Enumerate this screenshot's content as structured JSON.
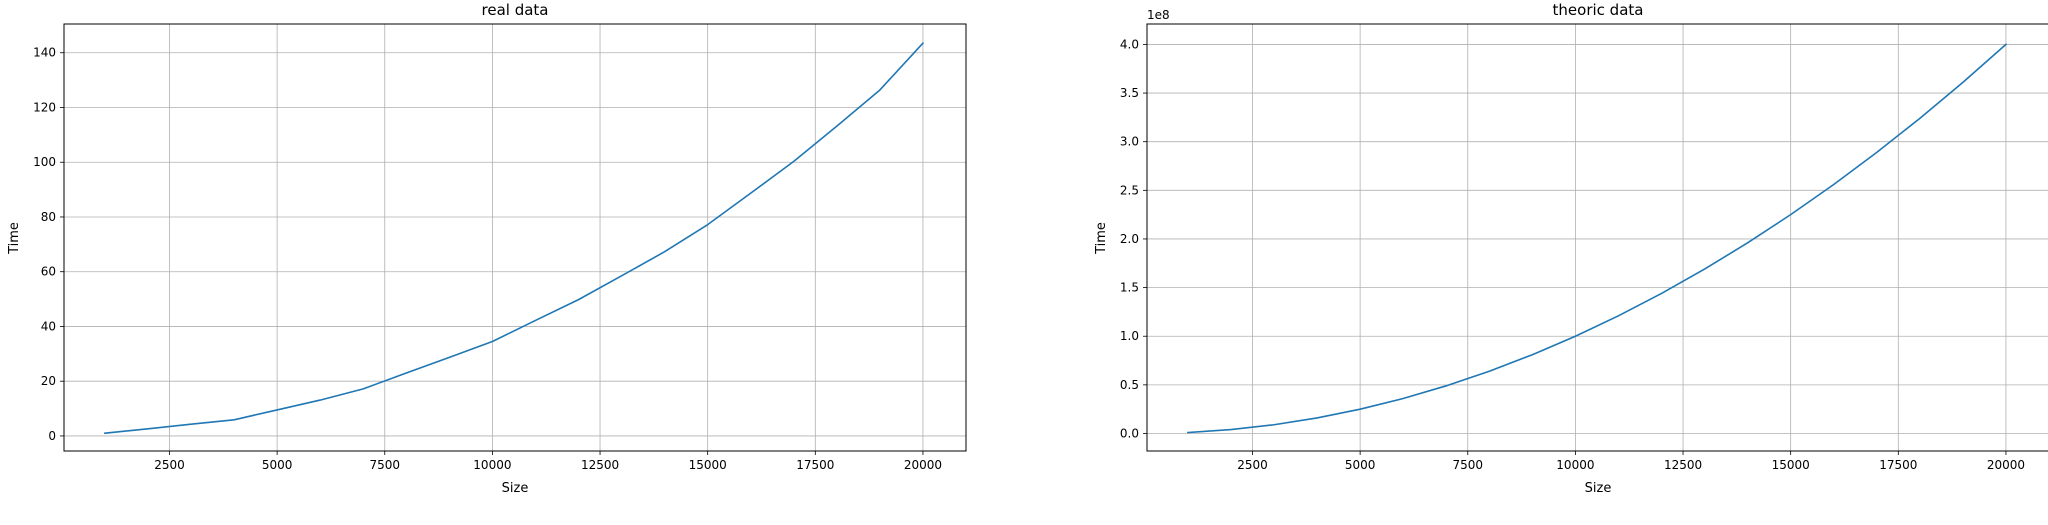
{
  "colors": {
    "series": "#1f77b4",
    "grid": "#b0b0b0",
    "axes": "#000000"
  },
  "chart_data": [
    {
      "type": "line",
      "title": "real data",
      "xlabel": "Size",
      "ylabel": "Time",
      "xlim": [
        50,
        21000
      ],
      "ylim": [
        -5.5,
        150.5
      ],
      "xticks": [
        2500,
        5000,
        7500,
        10000,
        12500,
        15000,
        17500,
        20000
      ],
      "xtick_labels": [
        "2500",
        "5000",
        "7500",
        "10000",
        "12500",
        "15000",
        "17500",
        "20000"
      ],
      "yticks": [
        0,
        20,
        40,
        60,
        80,
        100,
        120,
        140
      ],
      "ytick_labels": [
        "0",
        "20",
        "40",
        "60",
        "80",
        "100",
        "120",
        "140"
      ],
      "offset_text": "",
      "grid": true,
      "series": [
        {
          "x": [
            1000,
            2000,
            3000,
            4000,
            5000,
            6000,
            7000,
            8000,
            9000,
            10000,
            11000,
            12000,
            13000,
            14000,
            15000,
            16000,
            17000,
            18000,
            19000,
            20000
          ],
          "y": [
            1,
            2.6,
            4.3,
            5.9,
            9.5,
            13.1,
            17.2,
            23,
            28.7,
            34.5,
            42.2,
            49.8,
            58.5,
            67.3,
            77.2,
            88.7,
            100.3,
            113.2,
            126.4,
            143.5
          ]
        }
      ]
    },
    {
      "type": "line",
      "title": "theoric data",
      "xlabel": "Size",
      "ylabel": "Time",
      "xlim": [
        50,
        21000
      ],
      "ylim": [
        -18000000.0,
        421000000.0
      ],
      "xticks": [
        2500,
        5000,
        7500,
        10000,
        12500,
        15000,
        17500,
        20000
      ],
      "xtick_labels": [
        "2500",
        "5000",
        "7500",
        "10000",
        "12500",
        "15000",
        "17500",
        "20000"
      ],
      "yticks": [
        0,
        50000000.0,
        100000000.0,
        150000000.0,
        200000000.0,
        250000000.0,
        300000000.0,
        350000000.0,
        400000000.0
      ],
      "ytick_labels": [
        "0.0",
        "0.5",
        "1.0",
        "1.5",
        "2.0",
        "2.5",
        "3.0",
        "3.5",
        "4.0"
      ],
      "offset_text": "1e8",
      "grid": true,
      "series": [
        {
          "x": [
            1000,
            2000,
            3000,
            4000,
            5000,
            6000,
            7000,
            8000,
            9000,
            10000,
            11000,
            12000,
            13000,
            14000,
            15000,
            16000,
            17000,
            18000,
            19000,
            20000
          ],
          "y": [
            1000000.0,
            4000000.0,
            9000000.0,
            16000000.0,
            25000000.0,
            36000000.0,
            49000000.0,
            64000000.0,
            81000000.0,
            100000000.0,
            121000000.0,
            144000000.0,
            169000000.0,
            196000000.0,
            225000000.0,
            256000000.0,
            289000000.0,
            324000000.0,
            361000000.0,
            400000000.0
          ]
        }
      ]
    }
  ]
}
